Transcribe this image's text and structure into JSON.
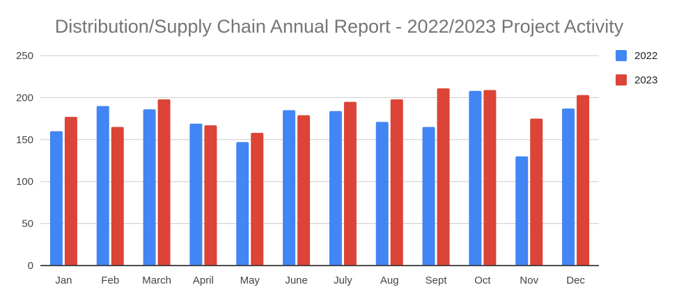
{
  "chart_data": {
    "type": "bar",
    "title": "Distribution/Supply Chain Annual Report - 2022/2023 Project Activity",
    "xlabel": "",
    "ylabel": "",
    "categories": [
      "Jan",
      "Feb",
      "March",
      "April",
      "May",
      "June",
      "July",
      "Aug",
      "Sept",
      "Oct",
      "Nov",
      "Dec"
    ],
    "series": [
      {
        "name": "2022",
        "color": "#4285F4",
        "values": [
          160,
          190,
          186,
          169,
          147,
          185,
          184,
          171,
          165,
          208,
          130,
          187
        ]
      },
      {
        "name": "2023",
        "color": "#DB4437",
        "values": [
          177,
          165,
          198,
          167,
          158,
          179,
          195,
          198,
          211,
          209,
          175,
          203
        ]
      }
    ],
    "ylim": [
      0,
      250
    ],
    "yticks": [
      "0",
      "50",
      "100",
      "150",
      "200",
      "250"
    ],
    "grid": true,
    "legend_position": "right"
  }
}
